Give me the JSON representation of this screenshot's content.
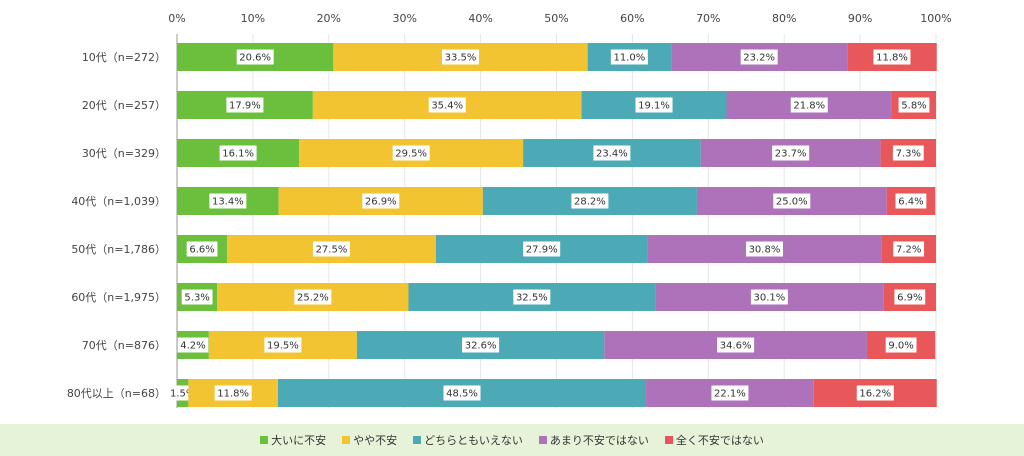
{
  "chart_data": {
    "type": "bar",
    "orientation": "horizontal",
    "stacked": true,
    "categories": [
      "10代（n=272）",
      "20代（n=257）",
      "30代（n=329）",
      "40代（n=1,039）",
      "50代（n=1,786）",
      "60代（n=1,975）",
      "70代（n=876）",
      "80代以上（n=68）"
    ],
    "series": [
      {
        "name": "大いに不安",
        "color": "#6abf3d",
        "values": [
          20.6,
          17.9,
          16.1,
          13.4,
          6.6,
          5.3,
          4.2,
          1.5
        ]
      },
      {
        "name": "やや不安",
        "color": "#f2c431",
        "values": [
          33.5,
          35.4,
          29.5,
          26.9,
          27.5,
          25.2,
          19.5,
          11.8
        ]
      },
      {
        "name": "どちらともいえない",
        "color": "#4baab5",
        "values": [
          11.0,
          19.1,
          23.4,
          28.2,
          27.9,
          32.5,
          32.6,
          48.5
        ]
      },
      {
        "name": "あまり不安ではない",
        "color": "#ad72b9",
        "values": [
          23.2,
          21.8,
          23.7,
          25.0,
          30.8,
          30.1,
          34.6,
          22.1
        ]
      },
      {
        "name": "全く不安ではない",
        "color": "#e8585a",
        "values": [
          11.8,
          5.8,
          7.3,
          6.4,
          7.2,
          6.9,
          9.0,
          16.2
        ]
      }
    ],
    "x_ticks": [
      "0%",
      "10%",
      "20%",
      "30%",
      "40%",
      "50%",
      "60%",
      "70%",
      "80%",
      "90%",
      "100%"
    ],
    "xlim": [
      0,
      100
    ],
    "grid": true,
    "legend_position": "bottom"
  }
}
